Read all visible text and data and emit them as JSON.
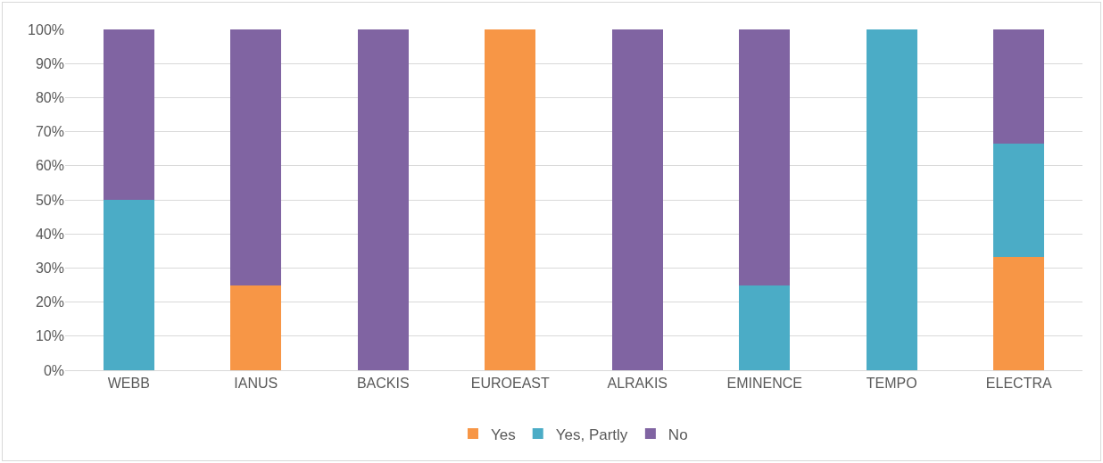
{
  "chart_data": {
    "type": "bar",
    "stacked": true,
    "categories": [
      "WEBB",
      "IANUS",
      "BACKIS",
      "EUROEAST",
      "ALRAKIS",
      "EMINENCE",
      "TEMPO",
      "ELECTRA"
    ],
    "series": [
      {
        "name": "Yes",
        "color": "#f79646",
        "values": [
          0,
          25,
          0,
          100,
          0,
          0,
          0,
          33.3
        ]
      },
      {
        "name": "Yes, Partly",
        "color": "#4bacc6",
        "values": [
          50,
          0,
          0,
          0,
          0,
          25,
          100,
          33.3
        ]
      },
      {
        "name": "No",
        "color": "#8064a2",
        "values": [
          50,
          75,
          100,
          0,
          100,
          75,
          0,
          33.3
        ]
      }
    ],
    "ylim": [
      0,
      100
    ],
    "yticks": [
      {
        "value": 0,
        "label": "0%"
      },
      {
        "value": 10,
        "label": "10%"
      },
      {
        "value": 20,
        "label": "20%"
      },
      {
        "value": 30,
        "label": "30%"
      },
      {
        "value": 40,
        "label": "40%"
      },
      {
        "value": 50,
        "label": "50%"
      },
      {
        "value": 60,
        "label": "60%"
      },
      {
        "value": 70,
        "label": "70%"
      },
      {
        "value": 80,
        "label": "80%"
      },
      {
        "value": 90,
        "label": "90%"
      },
      {
        "value": 100,
        "label": "100%"
      }
    ],
    "grid": "y",
    "legend": "bottom"
  }
}
